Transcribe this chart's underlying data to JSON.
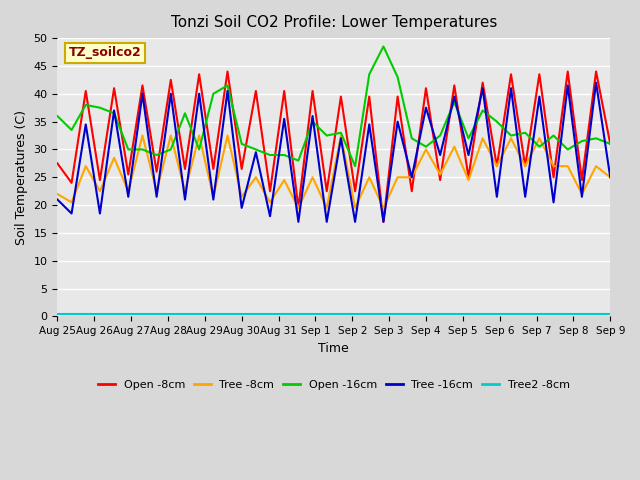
{
  "title": "Tonzi Soil CO2 Profile: Lower Temperatures",
  "ylabel": "Soil Temperatures (C)",
  "xlabel": "Time",
  "watermark": "TZ_soilco2",
  "ylim": [
    0,
    50
  ],
  "yticks": [
    0,
    5,
    10,
    15,
    20,
    25,
    30,
    35,
    40,
    45,
    50
  ],
  "legend": [
    "Open -8cm",
    "Tree -8cm",
    "Open -16cm",
    "Tree -16cm",
    "Tree2 -8cm"
  ],
  "legend_colors": [
    "#ff0000",
    "#ffa500",
    "#00cc00",
    "#0000cc",
    "#00cccc"
  ],
  "x_labels": [
    "Aug 25",
    "Aug 26",
    "Aug 27",
    "Aug 28",
    "Aug 29",
    "Aug 30",
    "Aug 31",
    "Sep 1",
    "Sep 2",
    "Sep 3",
    "Sep 4",
    "Sep 5",
    "Sep 6",
    "Sep 7",
    "Sep 8",
    "Sep 9"
  ],
  "open8_data": [
    27.5,
    24.0,
    40.5,
    24.5,
    41.0,
    25.5,
    41.5,
    26.0,
    42.5,
    26.5,
    43.5,
    26.5,
    44.0,
    26.5,
    40.5,
    22.5,
    40.5,
    19.5,
    40.5,
    22.5,
    39.5,
    22.5,
    39.5,
    17.0,
    39.5,
    22.5,
    41.0,
    24.5,
    41.5,
    25.0,
    42.0,
    27.0,
    43.5,
    27.0,
    43.5,
    25.0,
    44.0,
    24.5,
    44.0,
    31.0
  ],
  "tree8_data": [
    22.0,
    20.5,
    27.0,
    22.5,
    28.5,
    22.5,
    32.5,
    22.5,
    32.5,
    22.5,
    32.5,
    21.5,
    32.5,
    21.5,
    25.0,
    20.5,
    24.5,
    19.5,
    25.0,
    19.5,
    32.5,
    19.5,
    25.0,
    19.5,
    25.0,
    25.0,
    30.0,
    25.5,
    30.5,
    24.5,
    32.0,
    27.0,
    32.0,
    27.0,
    32.0,
    27.0,
    27.0,
    22.0,
    27.0,
    25.0
  ],
  "open16_data": [
    36.0,
    33.5,
    38.0,
    37.5,
    36.5,
    30.0,
    30.0,
    29.0,
    30.0,
    36.5,
    30.0,
    40.0,
    41.5,
    31.0,
    30.0,
    29.0,
    29.0,
    28.0,
    35.0,
    32.5,
    33.0,
    27.0,
    43.5,
    48.5,
    43.0,
    32.0,
    30.5,
    32.5,
    38.5,
    32.0,
    37.0,
    35.0,
    32.5,
    33.0,
    30.5,
    32.5,
    30.0,
    31.5,
    32.0,
    31.0
  ],
  "tree16_data": [
    21.0,
    18.5,
    34.5,
    18.5,
    37.0,
    21.5,
    40.0,
    21.5,
    40.0,
    21.0,
    40.0,
    21.0,
    40.5,
    19.5,
    29.5,
    18.0,
    35.5,
    17.0,
    36.0,
    17.0,
    32.0,
    17.0,
    34.5,
    17.0,
    35.0,
    25.0,
    37.5,
    29.0,
    39.5,
    29.0,
    41.0,
    21.5,
    41.0,
    21.5,
    39.5,
    20.5,
    41.5,
    21.5,
    42.0,
    25.0
  ],
  "tree2_8_value": 0.5
}
